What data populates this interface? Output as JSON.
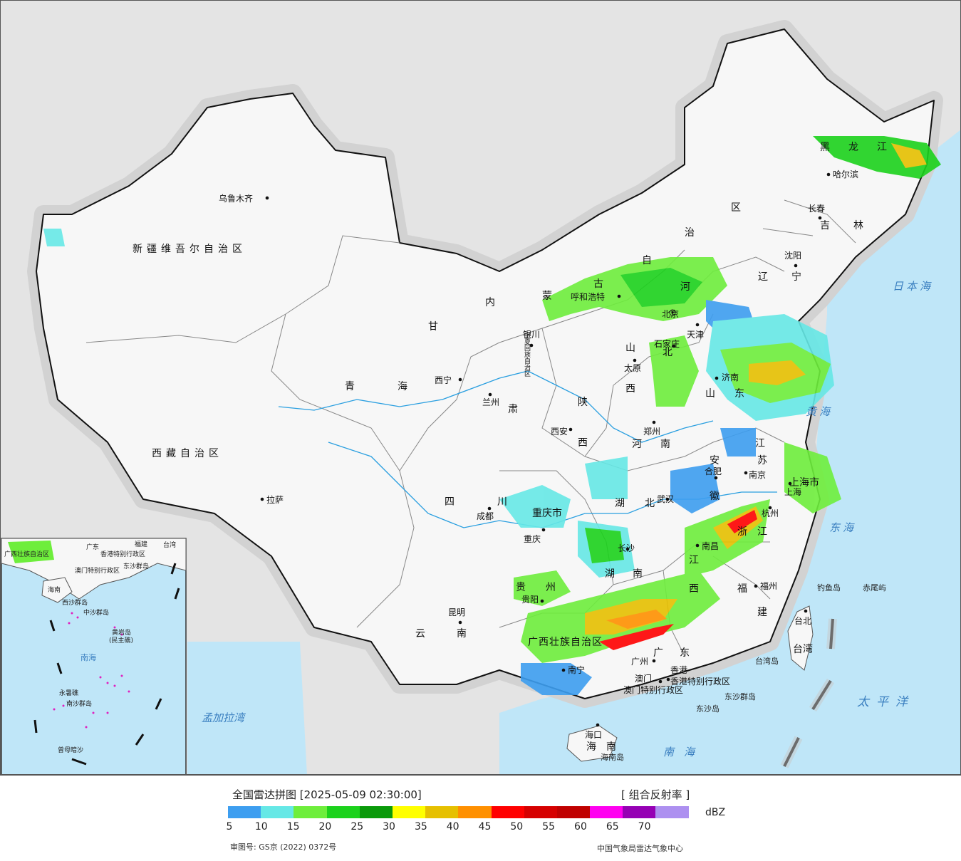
{
  "map": {
    "provinces": {
      "xinjiang": "新疆维吾尔自治区",
      "xizang": "西藏自治区",
      "qinghai_1": "青",
      "qinghai_2": "海",
      "gansu": "甘",
      "gansu_2": "肃",
      "neimenggu_1": "内",
      "neimenggu_2": "蒙",
      "neimenggu_3": "古",
      "neimenggu_4": "自",
      "neimenggu_5": "治",
      "neimenggu_6": "区",
      "ningxia": "宁夏回族自治区",
      "shaanxi_1": "陕",
      "shaanxi_2": "西",
      "shanxi_1": "山",
      "shanxi_2": "西",
      "sichuan_1": "四",
      "sichuan_2": "川",
      "yunnan_1": "云",
      "yunnan_2": "南",
      "guizhou_1": "贵",
      "guizhou_2": "州",
      "chongqing": "重庆市",
      "hubei_1": "湖",
      "hubei_2": "北",
      "hunan_1": "湖",
      "hunan_2": "南",
      "henan_1": "河",
      "henan_2": "南",
      "hebei_1": "河",
      "hebei_2": "北",
      "shandong_1": "山",
      "shandong_2": "东",
      "jiangsu_1": "江",
      "jiangsu_2": "苏",
      "anhui_1": "安",
      "anhui_2": "徽",
      "zhejiang_1": "浙",
      "zhejiang_2": "江",
      "jiangxi_1": "江",
      "jiangxi_2": "西",
      "fujian_1": "福",
      "fujian_2": "建",
      "guangdong_1": "广",
      "guangdong_2": "东",
      "guangxi": "广西壮族自治区",
      "hainan_1": "海",
      "hainan_2": "南",
      "heilongjiang_1": "黑",
      "heilongjiang_2": "龙",
      "heilongjiang_3": "江",
      "jilin_1": "吉",
      "jilin_2": "林",
      "liaoning_1": "辽",
      "liaoning_2": "宁",
      "shanghai": "上海市",
      "taiwan": "台湾",
      "hongkong": "香港特别行政区",
      "macau": "澳门特别行政区"
    },
    "cities": {
      "urumqi": "乌鲁木齐",
      "lhasa": "拉萨",
      "xining": "西宁",
      "lanzhou": "兰州",
      "yinchuan": "银川",
      "hohhot": "呼和浩特",
      "beijing": "北京",
      "tianjin": "天津",
      "shijiazhuang": "石家庄",
      "taiyuan": "太原",
      "xian": "西安",
      "zhengzhou": "郑州",
      "jinan": "济南",
      "nanjing": "南京",
      "hefei": "合肥",
      "shanghai": "上海",
      "hangzhou": "杭州",
      "wuhan": "武汉",
      "changsha": "长沙",
      "nanchang": "南昌",
      "fuzhou": "福州",
      "taibei": "台北",
      "guangzhou": "广州",
      "hongkong": "香港",
      "macau": "澳门",
      "nanning": "南宁",
      "haikou": "海口",
      "guiyang": "贵阳",
      "kunming": "昆明",
      "chengdu": "成都",
      "chongqing": "重庆",
      "shenyang": "沈阳",
      "changchun": "长春",
      "harbin": "哈尔滨"
    },
    "seas": {
      "japan_sea": "日本海",
      "yellow_sea": "黄海",
      "east_sea": "东海",
      "pacific": "太平洋",
      "south_sea": "南海",
      "bengal": "孟加拉湾"
    },
    "islands": {
      "diaoyu": "钓鱼岛",
      "chiwei": "赤尾屿",
      "taiwan_island": "台湾岛",
      "dongsha": "东沙群岛",
      "dongsha_2": "东沙岛",
      "hainan_island": "海南岛"
    },
    "inset": {
      "guangdong": "广东",
      "fujian": "福建",
      "taiwan": "台湾",
      "guangxi": "广西壮族自治区",
      "hongkong": "香港特别行政区",
      "macau": "澳门特别行政区",
      "dongsha": "东沙群岛",
      "hainan": "海南",
      "xisha": "西沙群岛",
      "zhongsha": "中沙群岛",
      "huangyan": "黄岩岛",
      "huangyan_2": "(民主礁)",
      "south_sea": "南海",
      "yongshu": "永暑礁",
      "nansha": "南沙群岛",
      "zengmu": "曾母暗沙"
    }
  },
  "legend": {
    "title": "全国雷达拼图 [2025-05-09 02:30:00]",
    "product": "[ 组合反射率 ]",
    "unit": "dBZ",
    "colors": [
      "#3d9ef0",
      "#66e8e6",
      "#6eee3c",
      "#1cd21c",
      "#0a9a0a",
      "#ffff00",
      "#e6c000",
      "#ff9000",
      "#ff0000",
      "#d60000",
      "#c00000",
      "#ff00f0",
      "#9600b4",
      "#ad90f0"
    ],
    "ticks": [
      "5",
      "10",
      "15",
      "20",
      "25",
      "30",
      "35",
      "40",
      "45",
      "50",
      "55",
      "60",
      "65",
      "70"
    ],
    "review_no": "审图号: GS京 (2022) 0372号",
    "credit": "中国气象局雷达气象中心"
  }
}
